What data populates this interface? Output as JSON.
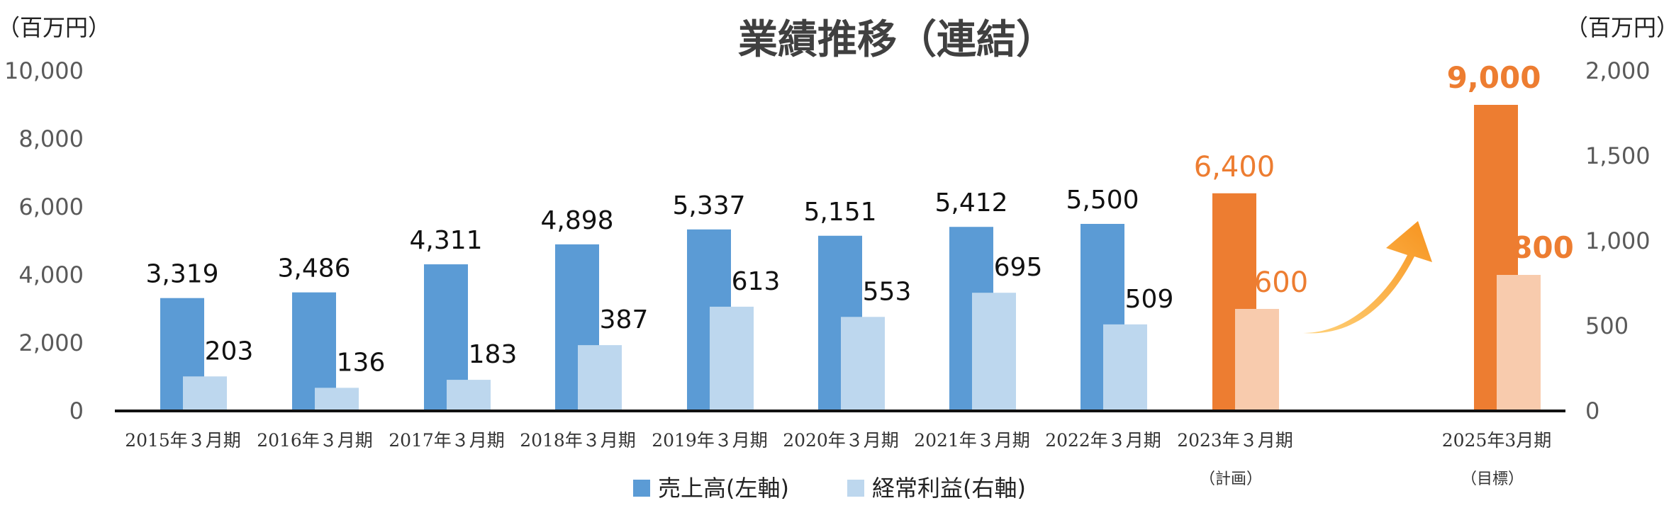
{
  "chart_data": {
    "type": "bar",
    "title": "業績推移（連結）",
    "left_axis": {
      "unit": "（百万円）",
      "range": [
        0,
        10000
      ],
      "ticks": [
        "0",
        "2,000",
        "4,000",
        "6,000",
        "8,000",
        "10,000"
      ]
    },
    "right_axis": {
      "unit": "（百万円）",
      "range": [
        0,
        2000
      ],
      "ticks": [
        "0",
        "500",
        "1,000",
        "1,500",
        "2,000"
      ]
    },
    "categories": [
      {
        "label": "2015年３月期",
        "sub": ""
      },
      {
        "label": "2016年３月期",
        "sub": ""
      },
      {
        "label": "2017年３月期",
        "sub": ""
      },
      {
        "label": "2018年３月期",
        "sub": ""
      },
      {
        "label": "2019年３月期",
        "sub": ""
      },
      {
        "label": "2020年３月期",
        "sub": ""
      },
      {
        "label": "2021年３月期",
        "sub": ""
      },
      {
        "label": "2022年３月期",
        "sub": ""
      },
      {
        "label": "2023年３月期",
        "sub": "（計画）"
      },
      {
        "label": "2025年3月期",
        "sub": "（目標）"
      }
    ],
    "series": [
      {
        "name": "売上高(左軸)",
        "axis": "left",
        "values": [
          3319,
          3486,
          4311,
          4898,
          5337,
          5151,
          5412,
          5500,
          6400,
          9000
        ],
        "labels": [
          "3,319",
          "3,486",
          "4,311",
          "4,898",
          "5,337",
          "5,151",
          "5,412",
          "5,500",
          "6,400",
          "9,000"
        ]
      },
      {
        "name": "経常利益(右軸)",
        "axis": "right",
        "values": [
          203,
          136,
          183,
          387,
          613,
          553,
          695,
          509,
          600,
          800
        ],
        "labels": [
          "203",
          "136",
          "183",
          "387",
          "613",
          "553",
          "695",
          "509",
          "600",
          "800"
        ]
      }
    ],
    "colors": {
      "sales": "#5B9BD5",
      "profit": "#BDD7EE",
      "sales_highlight": "#ED7D31",
      "profit_highlight": "#F8CBAD",
      "arrow": "#F7931E"
    },
    "legend_position": "bottom",
    "grid": false
  }
}
